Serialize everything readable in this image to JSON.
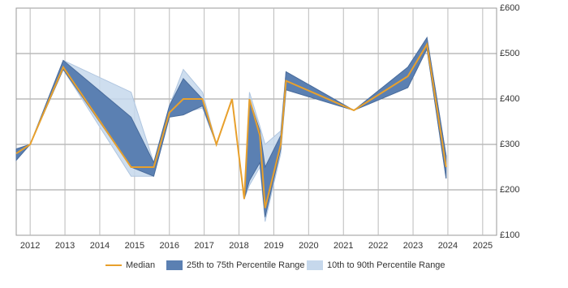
{
  "chart_data": {
    "type": "range-line",
    "x": [
      2011.6,
      2012.0,
      2012.95,
      2014.9,
      2015.55,
      2016.0,
      2016.4,
      2016.95,
      2017.35,
      2017.8,
      2018.15,
      2018.3,
      2018.6,
      2018.75,
      2019.2,
      2019.35,
      2021.3,
      2022.85,
      2023.4,
      2023.95
    ],
    "series": [
      {
        "name": "Median",
        "color": "#e8a02c",
        "values": [
          280,
          300,
          470,
          250,
          250,
          370,
          400,
          400,
          300,
          400,
          180,
          400,
          320,
          160,
          300,
          440,
          375,
          450,
          520,
          250
        ]
      },
      {
        "name": "25th to 75th Percentile Range",
        "color": "#5b80b2",
        "low": [
          265,
          300,
          465,
          250,
          230,
          360,
          365,
          385,
          300,
          400,
          180,
          220,
          260,
          140,
          290,
          420,
          375,
          425,
          510,
          225
        ],
        "high": [
          290,
          300,
          485,
          360,
          260,
          385,
          445,
          400,
          300,
          400,
          180,
          400,
          330,
          250,
          320,
          460,
          375,
          470,
          535,
          275
        ]
      },
      {
        "name": "10th to 90th Percentile Range",
        "color": "#c6d8ec",
        "low": [
          265,
          300,
          465,
          230,
          230,
          360,
          370,
          380,
          300,
          400,
          180,
          210,
          250,
          130,
          280,
          420,
          375,
          425,
          510,
          225
        ],
        "high": [
          290,
          300,
          485,
          415,
          260,
          385,
          465,
          415,
          300,
          400,
          180,
          415,
          340,
          300,
          330,
          460,
          375,
          470,
          535,
          275
        ]
      }
    ],
    "xlim": [
      2011.6,
      2025.4
    ],
    "xticks": [
      2012,
      2013,
      2014,
      2015,
      2016,
      2017,
      2018,
      2019,
      2020,
      2021,
      2022,
      2023,
      2024,
      2025
    ],
    "ylim": [
      100,
      600
    ],
    "yticks": [
      {
        "value": 100,
        "label": "£100"
      },
      {
        "value": 200,
        "label": "£200"
      },
      {
        "value": 300,
        "label": "£300"
      },
      {
        "value": 400,
        "label": "£400"
      },
      {
        "value": 500,
        "label": "£500"
      },
      {
        "value": 600,
        "label": "£600"
      }
    ],
    "grid": true
  }
}
